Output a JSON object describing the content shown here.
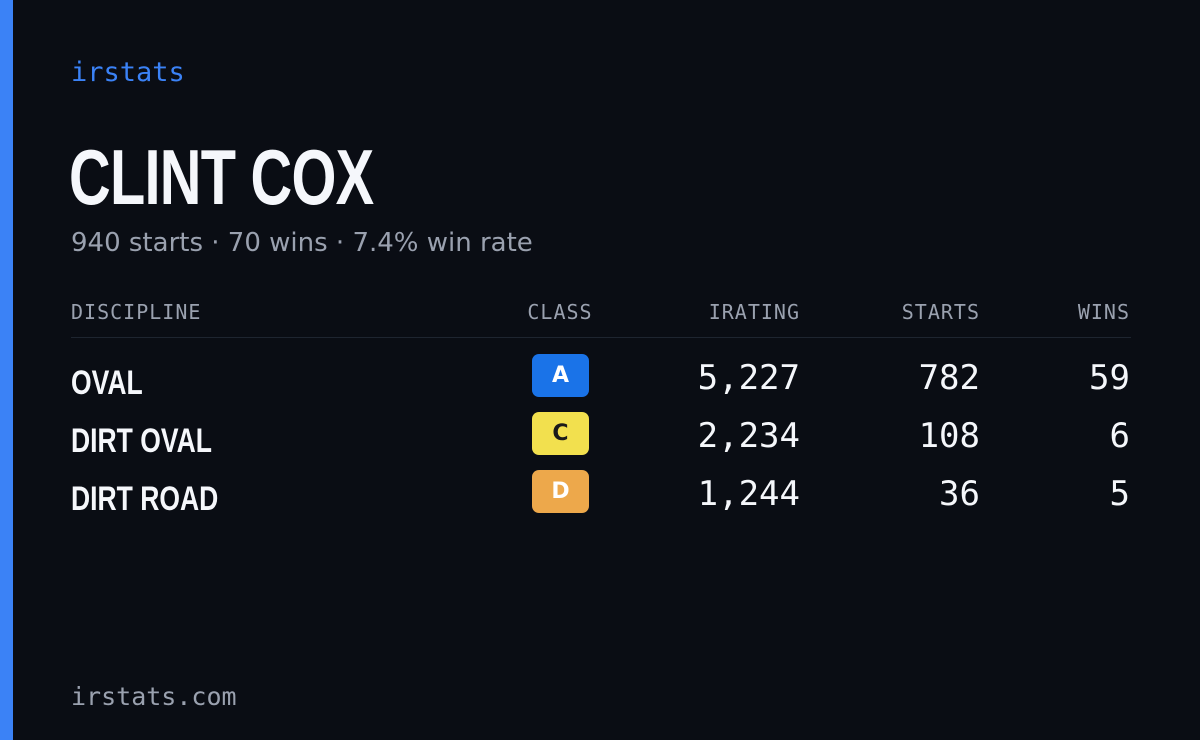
{
  "brand": "irstats",
  "driver": {
    "name": "CLINT COX",
    "summary": "940 starts · 70 wins · 7.4% win rate"
  },
  "table": {
    "headers": {
      "discipline": "DISCIPLINE",
      "class": "CLASS",
      "irating": "IRATING",
      "starts": "STARTS",
      "wins": "WINS"
    },
    "rows": [
      {
        "discipline": "OVAL",
        "class": "A",
        "class_color": "#1a73e8",
        "class_text_color": "#ffffff",
        "irating": "5,227",
        "starts": "782",
        "wins": "59"
      },
      {
        "discipline": "DIRT OVAL",
        "class": "C",
        "class_color": "#f2e04e",
        "class_text_color": "#1a1a1a",
        "irating": "2,234",
        "starts": "108",
        "wins": "6"
      },
      {
        "discipline": "DIRT ROAD",
        "class": "D",
        "class_color": "#eda84b",
        "class_text_color": "#ffffff",
        "irating": "1,244",
        "starts": "36",
        "wins": "5"
      }
    ]
  },
  "footer": "irstats.com",
  "colors": {
    "accent": "#3b82f6",
    "background": "#0a0d14",
    "muted_text": "#9aa1af"
  }
}
